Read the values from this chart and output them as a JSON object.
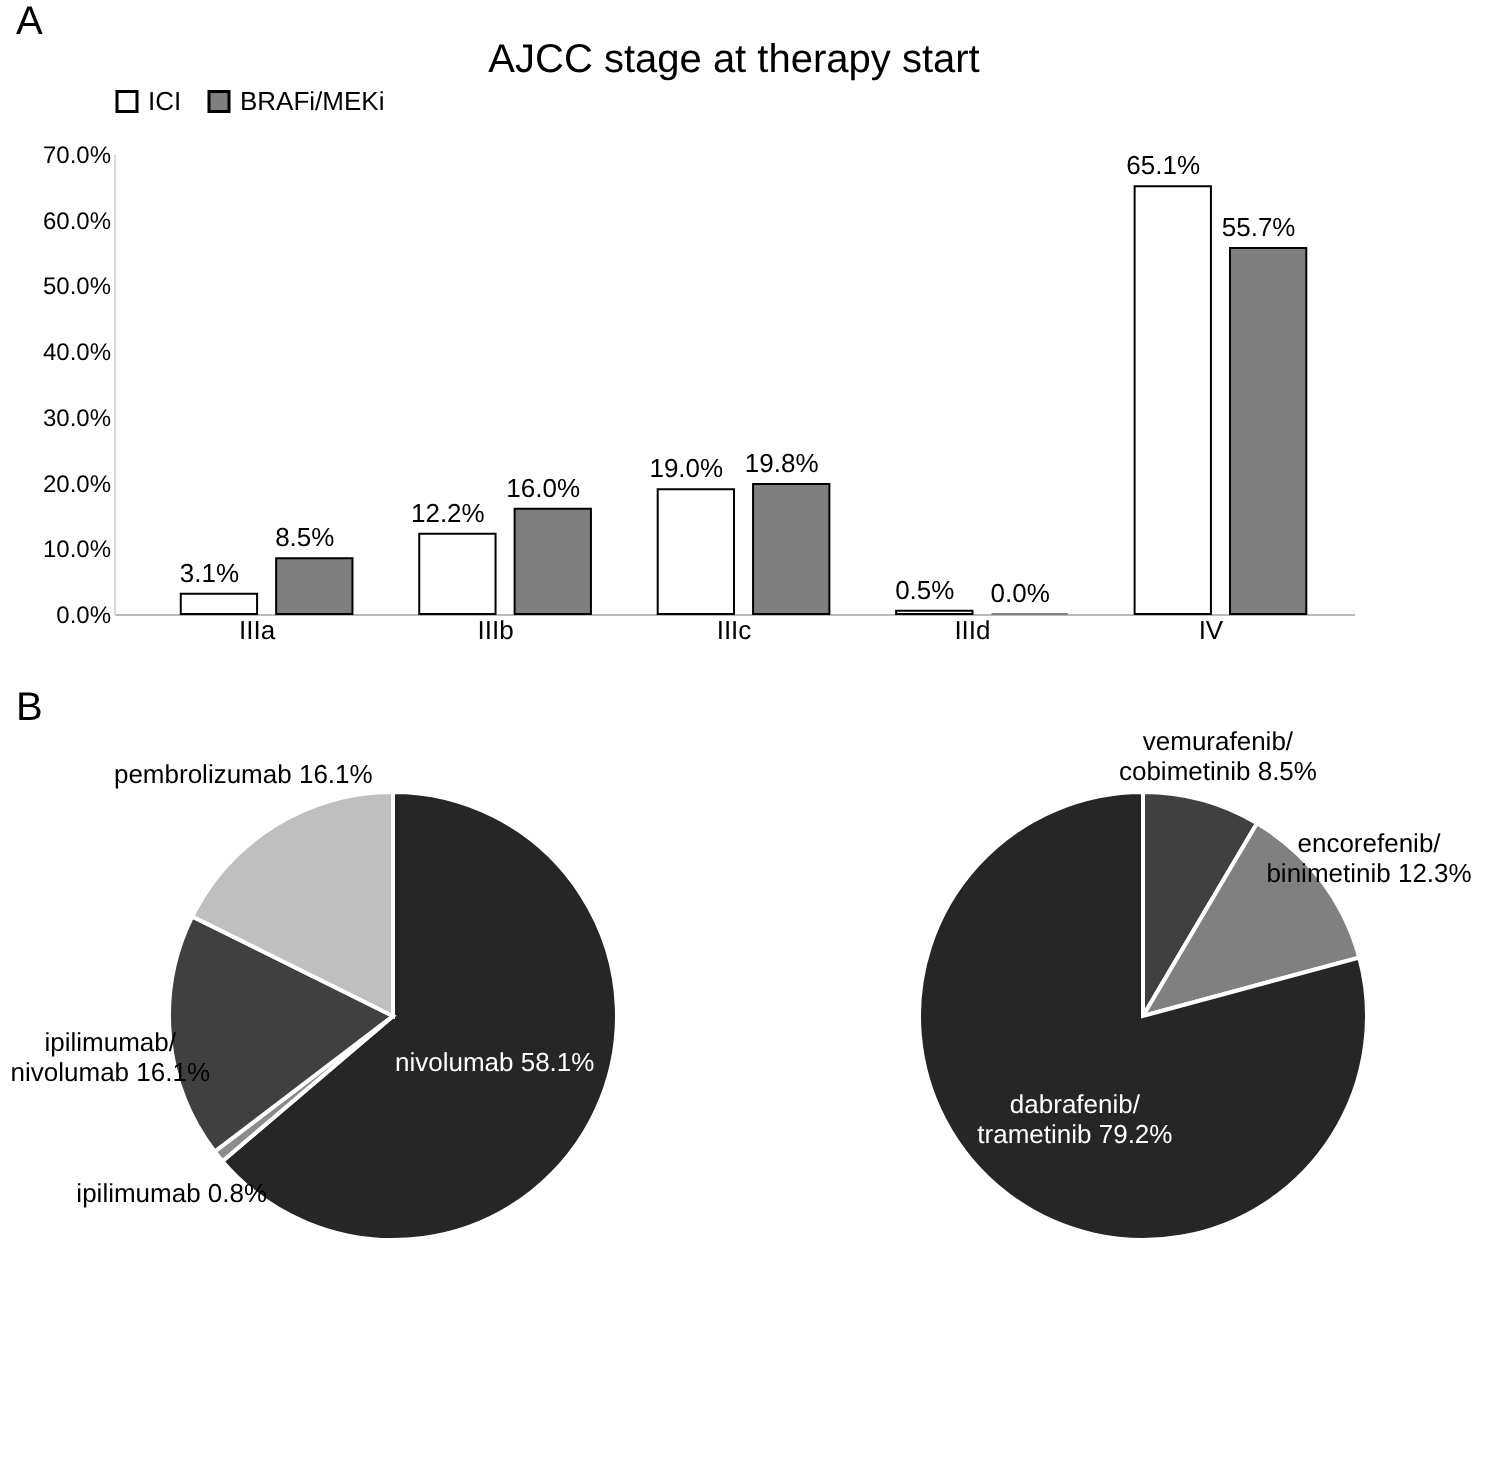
{
  "chart_data": [
    {
      "type": "bar",
      "title": "AJCC stage at therapy start",
      "annotations": [
        "A"
      ],
      "categories": [
        "IIIa",
        "IIIb",
        "IIIc",
        "IIId",
        "IV"
      ],
      "series": [
        {
          "name": "ICI",
          "color": "#ffffff",
          "values": [
            3.1,
            12.2,
            19.0,
            0.5,
            65.1
          ],
          "value_labels": [
            "3.1%",
            "12.2%",
            "19.0%",
            "0.5%",
            "65.1%"
          ]
        },
        {
          "name": "BRAFi/MEKi",
          "color": "#7f7f7f",
          "values": [
            8.5,
            16.0,
            19.8,
            0.0,
            55.7
          ],
          "value_labels": [
            "8.5%",
            "16.0%",
            "19.8%",
            "0.0%",
            "55.7%"
          ]
        }
      ],
      "ylim": [
        0,
        70
      ],
      "yticks": [
        {
          "value": 0,
          "label": "0.0%"
        },
        {
          "value": 10,
          "label": "10.0%"
        },
        {
          "value": 20,
          "label": "20.0%"
        },
        {
          "value": 30,
          "label": "30.0%"
        },
        {
          "value": 40,
          "label": "40.0%"
        },
        {
          "value": 50,
          "label": "50.0%"
        },
        {
          "value": 60,
          "label": "60.0%"
        },
        {
          "value": 70,
          "label": "70.0%"
        }
      ],
      "grid": false,
      "legend": "top"
    },
    {
      "type": "pie",
      "annotations": [
        "B"
      ],
      "categories": [
        "nivolumab",
        "ipilimumab",
        "ipilimumab/nivolumab",
        "pembrolizumab"
      ],
      "values": [
        58.1,
        0.8,
        16.1,
        16.1
      ],
      "value_labels": [
        "58.1%",
        "0.8%",
        "16.1%",
        "16.1%"
      ],
      "colors": [
        "#262626",
        "#8c8c8c",
        "#404040",
        "#bfbfbf"
      ]
    },
    {
      "type": "pie",
      "categories": [
        "vemurafenib/cobimetinib",
        "encorefenib/binimetinib",
        "dabrafenib/trametinib"
      ],
      "values": [
        8.5,
        12.3,
        79.2
      ],
      "value_labels": [
        "8.5%",
        "12.3%",
        "79.2%"
      ],
      "colors": [
        "#404040",
        "#808080",
        "#262626"
      ]
    }
  ]
}
